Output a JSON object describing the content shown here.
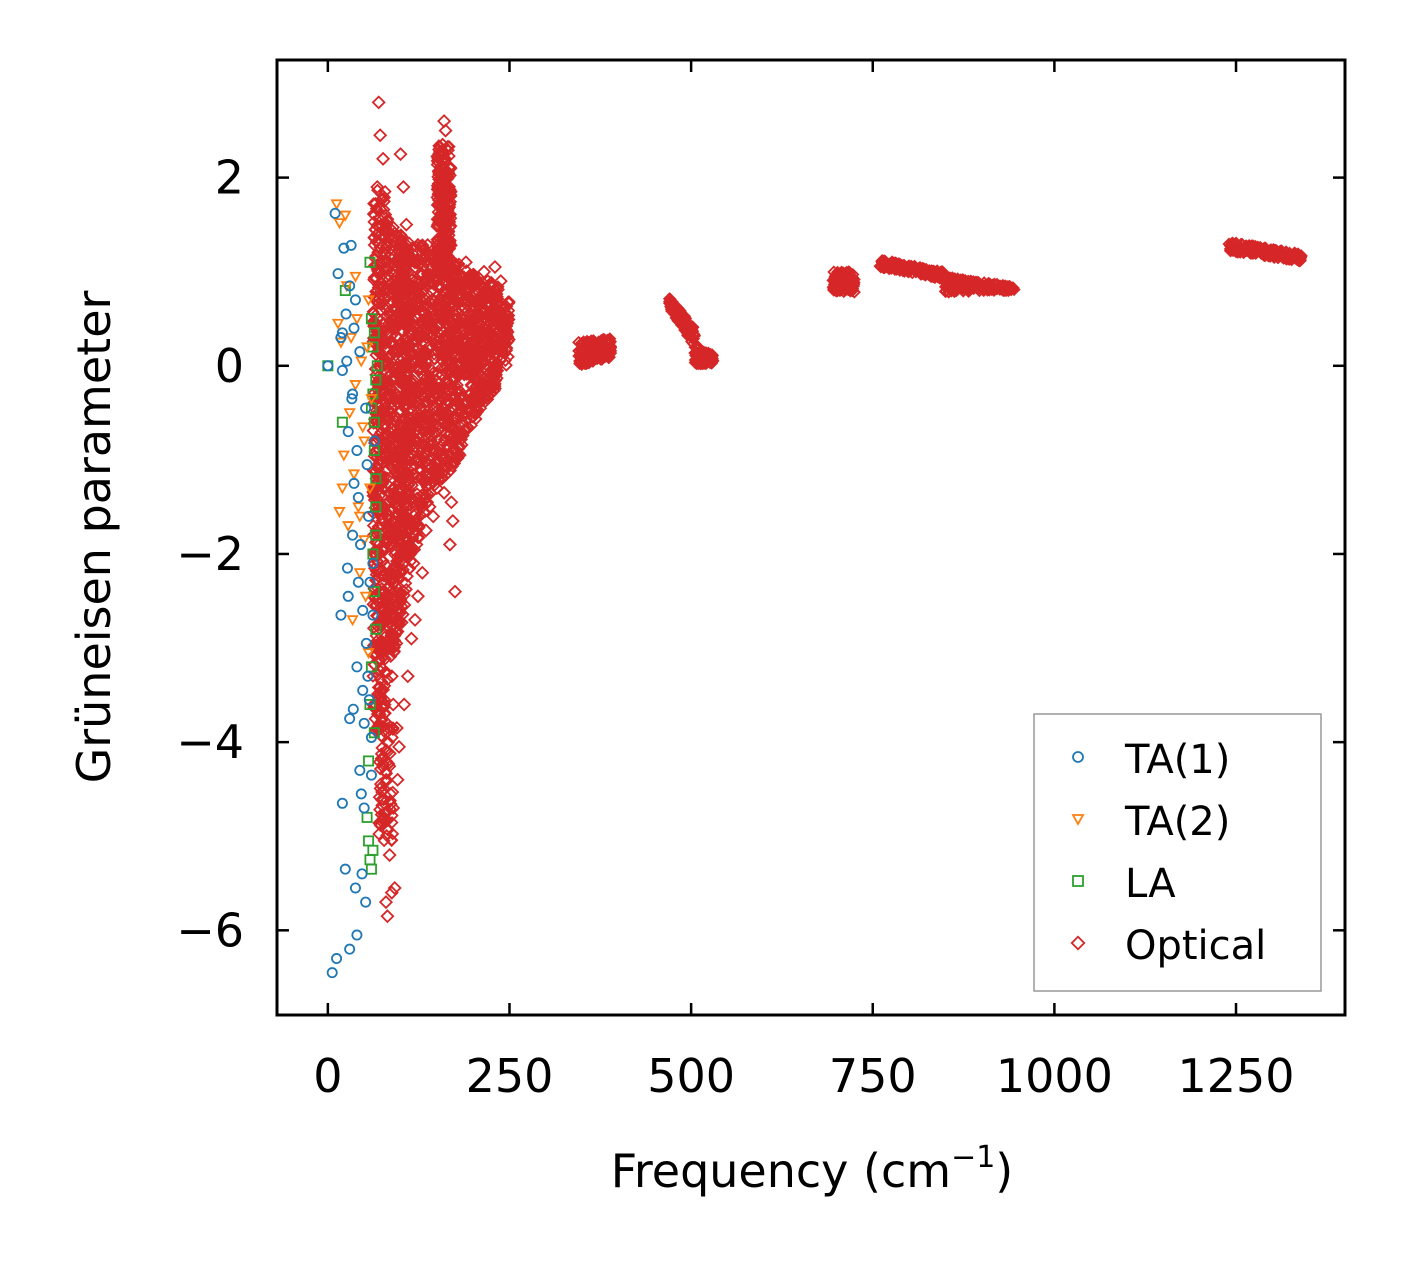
{
  "chart_data": {
    "type": "scatter",
    "title": "",
    "xlabel": "Frequency (cm",
    "xlabel_sup": "−1",
    "xlabel_close": ")",
    "ylabel": "Grüneisen parameter",
    "xlim": [
      -70,
      1400
    ],
    "ylim": [
      -6.9,
      3.25
    ],
    "xticks": [
      0,
      250,
      500,
      750,
      1000,
      1250
    ],
    "xtick_labels": [
      "0",
      "250",
      "500",
      "750",
      "1000",
      "1250"
    ],
    "yticks": [
      -6,
      -4,
      -2,
      0,
      2
    ],
    "ytick_labels": [
      "−6",
      "−4",
      "−2",
      "0",
      "2"
    ],
    "legend_position": "lower-right",
    "grid": false,
    "series": [
      {
        "name": "TA(1)",
        "marker": "circle",
        "color": "#1f77b4",
        "points": [
          [
            0,
            0.0
          ],
          [
            10,
            1.62
          ],
          [
            14,
            0.98
          ],
          [
            18,
            0.3
          ],
          [
            20,
            -0.05
          ],
          [
            22,
            1.25
          ],
          [
            25,
            0.55
          ],
          [
            27,
            -2.15
          ],
          [
            28,
            -2.45
          ],
          [
            30,
            0.85
          ],
          [
            32,
            1.28
          ],
          [
            33,
            -0.35
          ],
          [
            35,
            -3.65
          ],
          [
            36,
            0.4
          ],
          [
            38,
            0.7
          ],
          [
            40,
            -0.9
          ],
          [
            40,
            -3.2
          ],
          [
            42,
            -1.4
          ],
          [
            44,
            -4.3
          ],
          [
            45,
            -1.9
          ],
          [
            46,
            -4.55
          ],
          [
            48,
            -2.6
          ],
          [
            50,
            -3.8
          ],
          [
            50,
            -4.7
          ],
          [
            52,
            -5.7
          ],
          [
            53,
            -2.95
          ],
          [
            55,
            -3.3
          ],
          [
            56,
            -1.6
          ],
          [
            58,
            -2.3
          ],
          [
            60,
            -3.95
          ],
          [
            62,
            -2.1
          ],
          [
            64,
            -0.8
          ],
          [
            18,
            -2.65
          ],
          [
            20,
            -4.65
          ],
          [
            24,
            -5.35
          ],
          [
            30,
            -6.2
          ],
          [
            38,
            -5.55
          ],
          [
            40,
            -6.05
          ],
          [
            6,
            -6.45
          ],
          [
            12,
            -6.3
          ],
          [
            30,
            -3.75
          ],
          [
            34,
            -0.3
          ],
          [
            36,
            -1.25
          ],
          [
            44,
            0.15
          ],
          [
            52,
            -0.45
          ],
          [
            54,
            -1.05
          ],
          [
            57,
            -3.55
          ],
          [
            60,
            -4.35
          ],
          [
            62,
            -2.65
          ],
          [
            48,
            -3.45
          ],
          [
            47,
            -5.4
          ],
          [
            20,
            0.35
          ],
          [
            26,
            0.05
          ],
          [
            28,
            -0.7
          ],
          [
            34,
            -1.8
          ],
          [
            42,
            -2.3
          ]
        ]
      },
      {
        "name": "TA(2)",
        "marker": "triangle",
        "color": "#ff7f0e",
        "points": [
          [
            12,
            1.72
          ],
          [
            16,
            1.52
          ],
          [
            18,
            0.25
          ],
          [
            20,
            -1.3
          ],
          [
            22,
            -0.95
          ],
          [
            24,
            1.6
          ],
          [
            26,
            0.85
          ],
          [
            28,
            -1.7
          ],
          [
            30,
            -0.5
          ],
          [
            32,
            0.3
          ],
          [
            34,
            -2.7
          ],
          [
            36,
            -1.15
          ],
          [
            38,
            -0.2
          ],
          [
            40,
            0.5
          ],
          [
            42,
            -1.5
          ],
          [
            44,
            -2.2
          ],
          [
            46,
            0.05
          ],
          [
            48,
            -0.65
          ],
          [
            50,
            -1.85
          ],
          [
            52,
            -2.45
          ],
          [
            54,
            0.2
          ],
          [
            56,
            -3.05
          ],
          [
            58,
            -1.3
          ],
          [
            60,
            -0.35
          ],
          [
            16,
            -1.55
          ],
          [
            14,
            0.45
          ],
          [
            38,
            0.95
          ],
          [
            44,
            -1.6
          ],
          [
            50,
            -0.8
          ],
          [
            56,
            0.7
          ]
        ]
      },
      {
        "name": "LA",
        "marker": "square",
        "color": "#2ca02c",
        "points": [
          [
            0,
            0.0
          ],
          [
            20,
            -0.6
          ],
          [
            24,
            0.8
          ],
          [
            58,
            1.1
          ],
          [
            60,
            0.5
          ],
          [
            62,
            0.2
          ],
          [
            62,
            -0.3
          ],
          [
            64,
            -0.6
          ],
          [
            64,
            -0.9
          ],
          [
            66,
            -1.2
          ],
          [
            66,
            -1.5
          ],
          [
            62,
            -2.0
          ],
          [
            64,
            -2.4
          ],
          [
            66,
            -2.8
          ],
          [
            60,
            -3.2
          ],
          [
            58,
            -3.6
          ],
          [
            56,
            -4.2
          ],
          [
            54,
            -4.8
          ],
          [
            56,
            -5.05
          ],
          [
            58,
            -5.25
          ],
          [
            60,
            -5.35
          ],
          [
            62,
            -5.15
          ],
          [
            64,
            -3.9
          ],
          [
            66,
            -1.8
          ],
          [
            68,
            0.0
          ],
          [
            64,
            0.35
          ],
          [
            60,
            -0.45
          ],
          [
            66,
            -0.15
          ]
        ]
      },
      {
        "name": "Optical",
        "marker": "diamond",
        "color": "#d62728",
        "points": [
          [
            70,
            2.8
          ],
          [
            72,
            2.45
          ],
          [
            76,
            2.2
          ],
          [
            68,
            1.9
          ],
          [
            65,
            1.6
          ],
          [
            100,
            2.25
          ],
          [
            104,
            1.9
          ],
          [
            108,
            1.5
          ],
          [
            112,
            1.3
          ],
          [
            160,
            2.6
          ],
          [
            162,
            2.5
          ],
          [
            158,
            2.35
          ],
          [
            120,
            1.1
          ],
          [
            172,
            -1.65
          ],
          [
            168,
            -1.9
          ],
          [
            175,
            -2.4
          ],
          [
            170,
            -1.45
          ],
          [
            150,
            -1.3
          ],
          [
            140,
            -1.05
          ],
          [
            140,
            -1.5
          ],
          [
            85,
            -5.2
          ],
          [
            88,
            -5.6
          ],
          [
            80,
            -5.7
          ],
          [
            82,
            -5.85
          ],
          [
            92,
            -5.55
          ],
          [
            86,
            -4.55
          ],
          [
            96,
            -4.4
          ],
          [
            90,
            -4.7
          ],
          [
            110,
            -3.3
          ],
          [
            115,
            -2.9
          ],
          [
            124,
            -2.45
          ],
          [
            130,
            -2.2
          ],
          [
            105,
            -3.6
          ],
          [
            98,
            -4.05
          ],
          [
            95,
            -3.85
          ],
          [
            90,
            -3.6
          ],
          [
            88,
            -3.3
          ],
          [
            84,
            -3.0
          ],
          [
            80,
            -2.7
          ],
          [
            76,
            -2.4
          ],
          [
            120,
            -2.7
          ],
          [
            118,
            -2.1
          ],
          [
            122,
            -1.9
          ],
          [
            135,
            -1.75
          ],
          [
            145,
            -1.6
          ],
          [
            160,
            -1.35
          ],
          [
            175,
            -0.9
          ],
          [
            180,
            -0.75
          ],
          [
            200,
            -0.35
          ],
          [
            220,
            -0.1
          ],
          [
            240,
            0.15
          ],
          [
            242,
            0.6
          ],
          [
            238,
            0.9
          ],
          [
            230,
            1.05
          ],
          [
            215,
            1.0
          ],
          [
            200,
            0.9
          ],
          [
            190,
            1.1
          ],
          [
            205,
            0.5
          ],
          [
            185,
            0.2
          ]
        ]
      }
    ]
  }
}
